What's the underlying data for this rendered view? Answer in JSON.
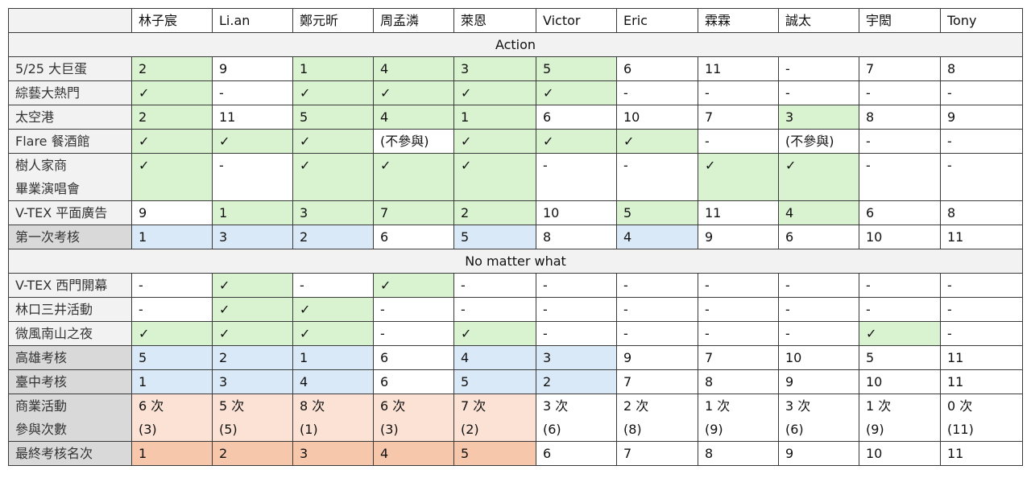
{
  "colors": {
    "g": "#d9f2d0",
    "b": "#dae9f7",
    "p": "#fbe2d5",
    "o": "#f7c7ac",
    "w": "#ffffff"
  },
  "header": [
    "林子宸",
    "Li.an",
    "鄭元昕",
    "周孟潾",
    "萊恩",
    "Victor",
    "Eric",
    "霖霖",
    "誠太",
    "宇閎",
    "Tony"
  ],
  "sections": [
    {
      "title": "Action",
      "rows": [
        {
          "label": "5/25 大巨蛋",
          "dark": false,
          "cells": [
            "2",
            "9",
            "1",
            "4",
            "3",
            "5",
            "6",
            "11",
            "-",
            "7",
            "8"
          ],
          "fill": "gwggggwwwww"
        },
        {
          "label": "綜藝大熱門",
          "dark": false,
          "cells": [
            "✓",
            "-",
            "✓",
            "✓",
            "✓",
            "✓",
            "-",
            "-",
            "-",
            "-",
            "-"
          ],
          "fill": "gwggggwwwww"
        },
        {
          "label": "太空港",
          "dark": false,
          "cells": [
            "2",
            "11",
            "5",
            "4",
            "1",
            "6",
            "10",
            "7",
            "3",
            "8",
            "9"
          ],
          "fill": "gwgggwwwgww"
        },
        {
          "label": "Flare 餐酒館",
          "dark": false,
          "cells": [
            "✓",
            "✓",
            "✓",
            "(不參與)",
            "✓",
            "✓",
            "✓",
            "-",
            "(不參與)",
            "-",
            "-"
          ],
          "fill": "gggwgggwwww"
        },
        {
          "label": "樹人家商\n畢業演唱會",
          "dark": false,
          "cells": [
            "✓",
            "-",
            "✓",
            "✓",
            "✓",
            "-",
            "-",
            "✓",
            "✓",
            "-",
            "-"
          ],
          "fill": "gwgggwwggww"
        },
        {
          "label": "V-TEX 平面廣告",
          "dark": false,
          "cells": [
            "9",
            "1",
            "3",
            "7",
            "2",
            "10",
            "5",
            "11",
            "4",
            "6",
            "8"
          ],
          "fill": "wggggwgwgww"
        },
        {
          "label": "第一次考核",
          "dark": true,
          "cells": [
            "1",
            "3",
            "2",
            "6",
            "5",
            "8",
            "4",
            "9",
            "6",
            "10",
            "11"
          ],
          "fill": "bbbwbwbwwww"
        }
      ]
    },
    {
      "title": "No matter what",
      "rows": [
        {
          "label": "V-TEX 西門開幕",
          "dark": false,
          "cells": [
            "-",
            "✓",
            "-",
            "✓",
            "-",
            "-",
            "-",
            "-",
            "-",
            "-",
            "-"
          ],
          "fill": "wgwgwwwwwww"
        },
        {
          "label": "林口三井活動",
          "dark": false,
          "cells": [
            "-",
            "✓",
            "✓",
            "-",
            "-",
            "-",
            "-",
            "-",
            "-",
            "-",
            "-"
          ],
          "fill": "wggwwwwwwww"
        },
        {
          "label": "微風南山之夜",
          "dark": false,
          "cells": [
            "✓",
            "✓",
            "✓",
            "-",
            "✓",
            "-",
            "-",
            "-",
            "-",
            "✓",
            "-"
          ],
          "fill": "gggwgwwwwgw"
        },
        {
          "label": "高雄考核",
          "dark": true,
          "cells": [
            "5",
            "2",
            "1",
            "6",
            "4",
            "3",
            "9",
            "7",
            "10",
            "5",
            "11"
          ],
          "fill": "bbbwbbwwwww"
        },
        {
          "label": "臺中考核",
          "dark": true,
          "cells": [
            "1",
            "3",
            "4",
            "6",
            "5",
            "2",
            "7",
            "8",
            "9",
            "10",
            "11"
          ],
          "fill": "bbbwbbwwwww"
        },
        {
          "label": "商業活動\n參與次數",
          "dark": true,
          "cells": [
            "6 次\n(3)",
            "5 次\n(5)",
            "8 次\n(1)",
            "6 次\n(3)",
            "7 次\n(2)",
            "3 次\n(6)",
            "2 次\n(8)",
            "1 次\n(9)",
            "3 次\n(6)",
            "1 次\n(9)",
            "0 次\n(11)"
          ],
          "fill": "pppppwwwwww"
        },
        {
          "label": "最終考核名次",
          "dark": true,
          "cells": [
            "1",
            "2",
            "3",
            "4",
            "5",
            "6",
            "7",
            "8",
            "9",
            "10",
            "11"
          ],
          "fill": "ooooowwwwww"
        }
      ]
    }
  ]
}
